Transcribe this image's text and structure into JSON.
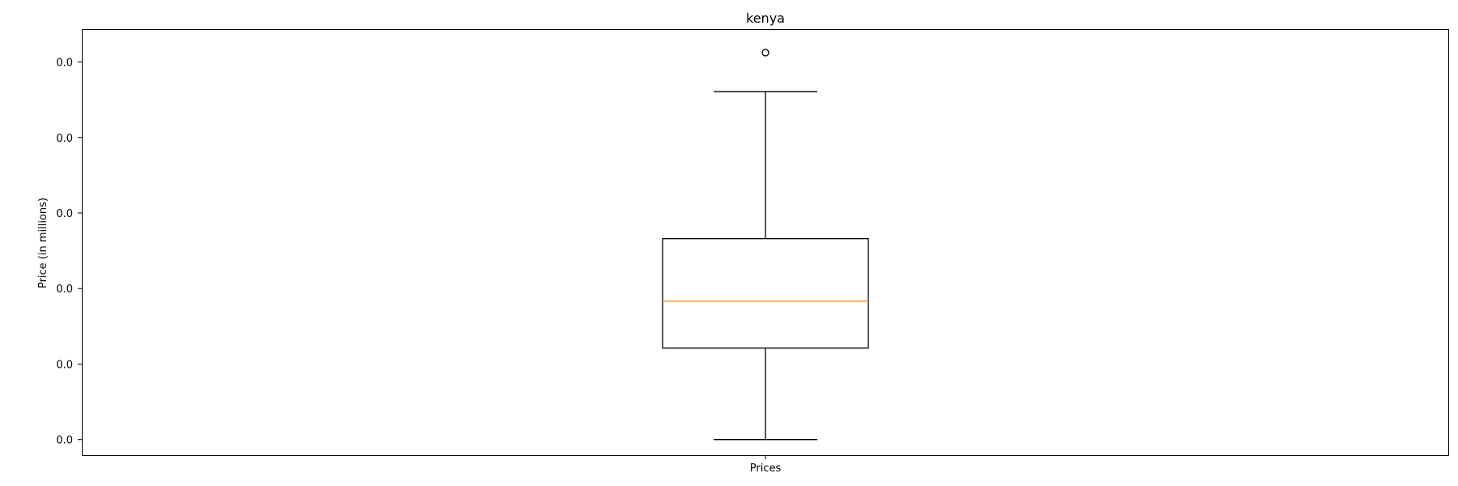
{
  "chart_data": {
    "type": "box",
    "title": "kenya",
    "xlabel": "",
    "ylabel": "Price (in millions)",
    "categories": [
      "Prices"
    ],
    "y_tick_labels": [
      "0.0",
      "0.0",
      "0.0",
      "0.0",
      "0.0",
      "0.0"
    ],
    "ylim": [
      0,
      5.45
    ],
    "grid": false,
    "legend": "none",
    "box": {
      "whisker_low": 0.2,
      "q1": 1.37,
      "median": 1.97,
      "q3": 2.77,
      "whisker_high": 4.65,
      "outliers": [
        5.15
      ]
    },
    "colors": {
      "box": "#000000",
      "median": "#ff7f0e",
      "outlier": "#000000"
    }
  }
}
